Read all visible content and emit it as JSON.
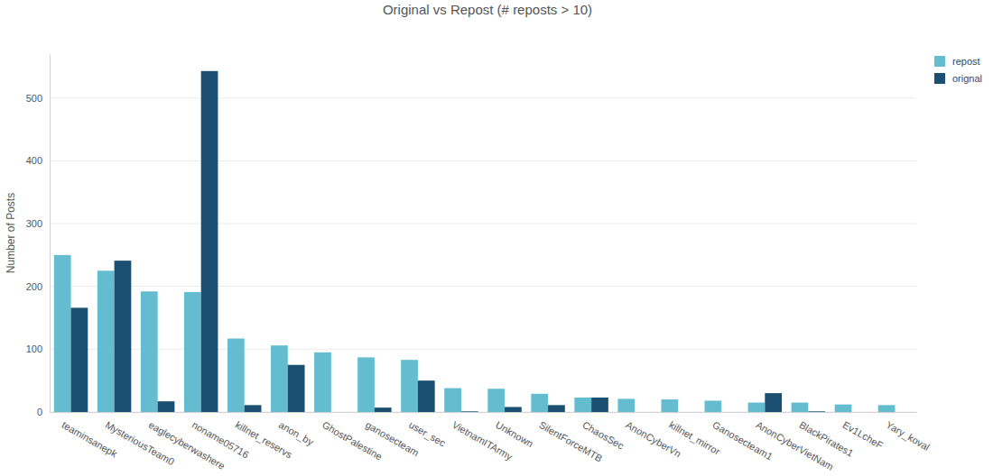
{
  "chart_data": {
    "type": "bar",
    "title": "Original vs Repost (# reposts > 10)",
    "y_label": "Number of Posts",
    "categories": [
      "teaminsanepk",
      "MysteriousTeam0",
      "eaglecyberwashere",
      "noname05716",
      "killnet_reservs",
      "anon_by",
      "GhostPalestine",
      "ganosecteam",
      "user_sec",
      "VietnamITArmy",
      "Unknown",
      "SilentForceMTB",
      "ChaosSec",
      "AnonCyberVn",
      "killnet_mirror",
      "Ganosecteam1",
      "AnonCyberVietNam",
      "BlackPirates1",
      "Ev1LcheF",
      "Yary_koval"
    ],
    "series": [
      {
        "name": "repost",
        "color": "#63bccf",
        "values": [
          250,
          225,
          192,
          191,
          117,
          106,
          95,
          87,
          83,
          38,
          37,
          29,
          23,
          21,
          20,
          18,
          15,
          15,
          12,
          11
        ]
      },
      {
        "name": "orignal",
        "color": "#1b5072",
        "values": [
          166,
          241,
          17,
          543,
          11,
          75,
          0,
          7,
          50,
          1,
          8,
          11,
          23,
          0,
          0,
          0,
          30,
          1,
          0,
          0
        ]
      }
    ],
    "ylim": [
      0,
      570
    ],
    "yticks": [
      0,
      100,
      200,
      300,
      400,
      500
    ],
    "grid": true,
    "legend": "top-right"
  }
}
